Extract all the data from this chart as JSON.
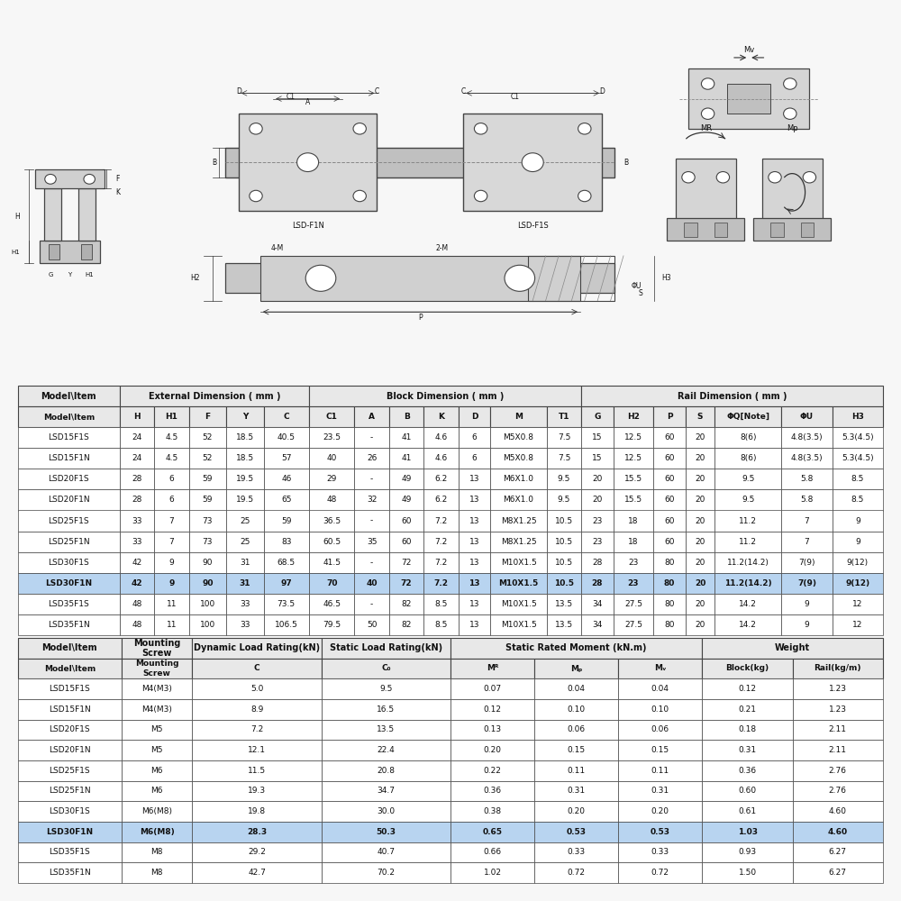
{
  "bg_color": "#f7f7f7",
  "table1_header_groups": [
    {
      "label": "Model\\Item",
      "colspan": 1
    },
    {
      "label": "External Dimension ( mm )",
      "colspan": 5
    },
    {
      "label": "Block Dimension ( mm )",
      "colspan": 7
    },
    {
      "label": "Rail Dimension ( mm )",
      "colspan": 7
    }
  ],
  "table1_subheader": [
    "Model\\Item",
    "H",
    "H1",
    "F",
    "Y",
    "C",
    "C1",
    "A",
    "B",
    "K",
    "D",
    "M",
    "T1",
    "G",
    "H2",
    "P",
    "S",
    "ΦQ[Note]",
    "ΦU",
    "H3"
  ],
  "table1_rows": [
    [
      "LSD15F1S",
      "24",
      "4.5",
      "52",
      "18.5",
      "40.5",
      "23.5",
      "-",
      "41",
      "4.6",
      "6",
      "M5X0.8",
      "7.5",
      "15",
      "12.5",
      "60",
      "20",
      "8(6)",
      "4.8(3.5)",
      "5.3(4.5)"
    ],
    [
      "LSD15F1N",
      "24",
      "4.5",
      "52",
      "18.5",
      "57",
      "40",
      "26",
      "41",
      "4.6",
      "6",
      "M5X0.8",
      "7.5",
      "15",
      "12.5",
      "60",
      "20",
      "8(6)",
      "4.8(3.5)",
      "5.3(4.5)"
    ],
    [
      "LSD20F1S",
      "28",
      "6",
      "59",
      "19.5",
      "46",
      "29",
      "-",
      "49",
      "6.2",
      "13",
      "M6X1.0",
      "9.5",
      "20",
      "15.5",
      "60",
      "20",
      "9.5",
      "5.8",
      "8.5"
    ],
    [
      "LSD20F1N",
      "28",
      "6",
      "59",
      "19.5",
      "65",
      "48",
      "32",
      "49",
      "6.2",
      "13",
      "M6X1.0",
      "9.5",
      "20",
      "15.5",
      "60",
      "20",
      "9.5",
      "5.8",
      "8.5"
    ],
    [
      "LSD25F1S",
      "33",
      "7",
      "73",
      "25",
      "59",
      "36.5",
      "-",
      "60",
      "7.2",
      "13",
      "M8X1.25",
      "10.5",
      "23",
      "18",
      "60",
      "20",
      "11.2",
      "7",
      "9"
    ],
    [
      "LSD25F1N",
      "33",
      "7",
      "73",
      "25",
      "83",
      "60.5",
      "35",
      "60",
      "7.2",
      "13",
      "M8X1.25",
      "10.5",
      "23",
      "18",
      "60",
      "20",
      "11.2",
      "7",
      "9"
    ],
    [
      "LSD30F1S",
      "42",
      "9",
      "90",
      "31",
      "68.5",
      "41.5",
      "-",
      "72",
      "7.2",
      "13",
      "M10X1.5",
      "10.5",
      "28",
      "23",
      "80",
      "20",
      "11.2(14.2)",
      "7(9)",
      "9(12)"
    ],
    [
      "LSD30F1N",
      "42",
      "9",
      "90",
      "31",
      "97",
      "70",
      "40",
      "72",
      "7.2",
      "13",
      "M10X1.5",
      "10.5",
      "28",
      "23",
      "80",
      "20",
      "11.2(14.2)",
      "7(9)",
      "9(12)"
    ],
    [
      "LSD35F1S",
      "48",
      "11",
      "100",
      "33",
      "73.5",
      "46.5",
      "-",
      "82",
      "8.5",
      "13",
      "M10X1.5",
      "13.5",
      "34",
      "27.5",
      "80",
      "20",
      "14.2",
      "9",
      "12"
    ],
    [
      "LSD35F1N",
      "48",
      "11",
      "100",
      "33",
      "106.5",
      "79.5",
      "50",
      "82",
      "8.5",
      "13",
      "M10X1.5",
      "13.5",
      "34",
      "27.5",
      "80",
      "20",
      "14.2",
      "9",
      "12"
    ]
  ],
  "table1_highlight_row": 7,
  "table2_header_groups": [
    {
      "label": "Model\\Item",
      "colspan": 1
    },
    {
      "label": "Mounting\nScrew",
      "colspan": 1
    },
    {
      "label": "Dynamic Load Rating(kN)",
      "colspan": 1
    },
    {
      "label": "Static Load Rating(kN)",
      "colspan": 1
    },
    {
      "label": "Static Rated Moment (kN.m)",
      "colspan": 3
    },
    {
      "label": "Weight",
      "colspan": 2
    }
  ],
  "table2_subheader": [
    "Model\\Item",
    "Mounting\nScrew",
    "C",
    "C₀",
    "Mᴿ",
    "Mₚ",
    "Mᵥ",
    "Block(kg)",
    "Rail(kg/m)"
  ],
  "table2_rows": [
    [
      "LSD15F1S",
      "M4(M3)",
      "5.0",
      "9.5",
      "0.07",
      "0.04",
      "0.04",
      "0.12",
      "1.23"
    ],
    [
      "LSD15F1N",
      "M4(M3)",
      "8.9",
      "16.5",
      "0.12",
      "0.10",
      "0.10",
      "0.21",
      "1.23"
    ],
    [
      "LSD20F1S",
      "M5",
      "7.2",
      "13.5",
      "0.13",
      "0.06",
      "0.06",
      "0.18",
      "2.11"
    ],
    [
      "LSD20F1N",
      "M5",
      "12.1",
      "22.4",
      "0.20",
      "0.15",
      "0.15",
      "0.31",
      "2.11"
    ],
    [
      "LSD25F1S",
      "M6",
      "11.5",
      "20.8",
      "0.22",
      "0.11",
      "0.11",
      "0.36",
      "2.76"
    ],
    [
      "LSD25F1N",
      "M6",
      "19.3",
      "34.7",
      "0.36",
      "0.31",
      "0.31",
      "0.60",
      "2.76"
    ],
    [
      "LSD30F1S",
      "M6(M8)",
      "19.8",
      "30.0",
      "0.38",
      "0.20",
      "0.20",
      "0.61",
      "4.60"
    ],
    [
      "LSD30F1N",
      "M6(M8)",
      "28.3",
      "50.3",
      "0.65",
      "0.53",
      "0.53",
      "1.03",
      "4.60"
    ],
    [
      "LSD35F1S",
      "M8",
      "29.2",
      "40.7",
      "0.66",
      "0.33",
      "0.33",
      "0.93",
      "6.27"
    ],
    [
      "LSD35F1N",
      "M8",
      "42.7",
      "70.2",
      "1.02",
      "0.72",
      "0.72",
      "1.50",
      "6.27"
    ]
  ],
  "table2_highlight_row": 7,
  "highlight_color": "#b8d4f0",
  "header_color": "#e8e8e8",
  "border_color": "#444444",
  "text_color": "#111111",
  "font_size_header": 7.0,
  "font_size_data": 6.5,
  "t1_col_widths": [
    1.9,
    0.65,
    0.65,
    0.7,
    0.7,
    0.85,
    0.85,
    0.65,
    0.65,
    0.65,
    0.6,
    1.05,
    0.65,
    0.6,
    0.75,
    0.6,
    0.55,
    1.25,
    0.95,
    0.95
  ],
  "t2_col_widths": [
    1.6,
    1.1,
    2.0,
    2.0,
    1.3,
    1.3,
    1.3,
    1.4,
    1.4
  ]
}
